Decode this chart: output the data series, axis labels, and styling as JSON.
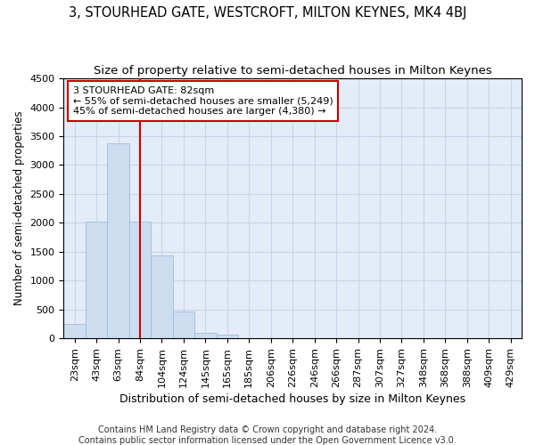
{
  "title": "3, STOURHEAD GATE, WESTCROFT, MILTON KEYNES, MK4 4BJ",
  "subtitle": "Size of property relative to semi-detached houses in Milton Keynes",
  "xlabel": "Distribution of semi-detached houses by size in Milton Keynes",
  "ylabel": "Number of semi-detached properties",
  "footer_line1": "Contains HM Land Registry data © Crown copyright and database right 2024.",
  "footer_line2": "Contains public sector information licensed under the Open Government Licence v3.0.",
  "categories": [
    "23sqm",
    "43sqm",
    "63sqm",
    "84sqm",
    "104sqm",
    "124sqm",
    "145sqm",
    "165sqm",
    "185sqm",
    "206sqm",
    "226sqm",
    "246sqm",
    "266sqm",
    "287sqm",
    "307sqm",
    "327sqm",
    "348sqm",
    "368sqm",
    "388sqm",
    "409sqm",
    "429sqm"
  ],
  "values": [
    250,
    2020,
    3380,
    2020,
    1440,
    470,
    100,
    70,
    0,
    0,
    0,
    0,
    0,
    0,
    0,
    0,
    0,
    0,
    0,
    0,
    0
  ],
  "bar_color": "#ccddf0",
  "bar_edge_color": "#a8c0dc",
  "vline_color": "#cc0000",
  "vline_x_index": 3,
  "ylim": [
    0,
    4500
  ],
  "yticks": [
    0,
    500,
    1000,
    1500,
    2000,
    2500,
    3000,
    3500,
    4000,
    4500
  ],
  "annotation_text": "3 STOURHEAD GATE: 82sqm\n← 55% of semi-detached houses are smaller (5,249)\n45% of semi-detached houses are larger (4,380) →",
  "annotation_box_color": "white",
  "annotation_box_edge_color": "#cc0000",
  "grid_color": "#c8d4e8",
  "background_color": "#e4ecf8",
  "title_fontsize": 10.5,
  "subtitle_fontsize": 9.5,
  "ylabel_fontsize": 8.5,
  "xlabel_fontsize": 9,
  "tick_fontsize": 8,
  "annotation_fontsize": 8,
  "footer_fontsize": 7
}
